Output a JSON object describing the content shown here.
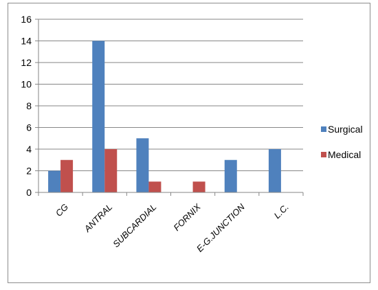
{
  "chart_data": {
    "type": "bar",
    "title": "",
    "xlabel": "",
    "ylabel": "",
    "categories": [
      "CG",
      "ANTRAL",
      "SUBCARDIAL",
      "FORNIX",
      "E-G.JUNCTION",
      "L.C."
    ],
    "series": [
      {
        "name": "Surgical",
        "color": "#4F81BD",
        "values": [
          2,
          14,
          5,
          null,
          3,
          4
        ]
      },
      {
        "name": "Medical",
        "color": "#C0504D",
        "values": [
          3,
          4,
          1,
          1,
          null,
          null
        ]
      }
    ],
    "ylim": [
      0,
      16
    ],
    "yticks": [
      0,
      2,
      4,
      6,
      8,
      10,
      12,
      14,
      16
    ],
    "grid": true,
    "legend": "right"
  }
}
